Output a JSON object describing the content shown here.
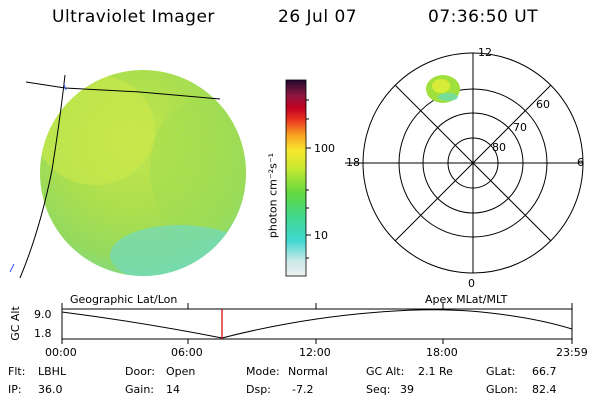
{
  "header": {
    "instrument": "Ultraviolet Imager",
    "date": "26 Jul 07",
    "time": "07:36:50 UT"
  },
  "colorbar": {
    "label": "photon cm⁻²s⁻¹",
    "ticks": [
      "100",
      "10"
    ]
  },
  "polar": {
    "mlt_labels": [
      "12",
      "18",
      "6",
      "0"
    ],
    "lat_labels": [
      "60",
      "70",
      "80"
    ]
  },
  "panels": {
    "left_caption": "Geographic Lat/Lon",
    "right_caption": "Apex MLat/MLT"
  },
  "timeline": {
    "axis_title": "GC Alt",
    "y_top": "9.0",
    "y_bottom": "1.8",
    "x_ticks": [
      "00:00",
      "06:00",
      "12:00",
      "18:00",
      "23:59"
    ],
    "marker_time": "07:36:50"
  },
  "status": {
    "flt_label": "Flt:",
    "flt_value": "LBHL",
    "ip_label": "IP:",
    "ip_value": "36.0",
    "door_label": "Door:",
    "door_value": "Open",
    "gain_label": "Gain:",
    "gain_value": "14",
    "mode_label": "Mode:",
    "mode_value": "Normal",
    "dsp_label": "Dsp:",
    "dsp_value": "-7.2",
    "gcalt_label": "GC Alt:",
    "gcalt_value": "2.1 Re",
    "seq_label": "Seq:",
    "seq_value": "39",
    "glat_label": "GLat:",
    "glat_value": "66.7",
    "glon_label": "GLon:",
    "glon_value": "82.4"
  },
  "colors": {
    "disk_main": "#a8e040",
    "disk_yellow": "#d4ec3a",
    "disk_cyan": "#6fe0b8",
    "marker": "#cc0000"
  }
}
